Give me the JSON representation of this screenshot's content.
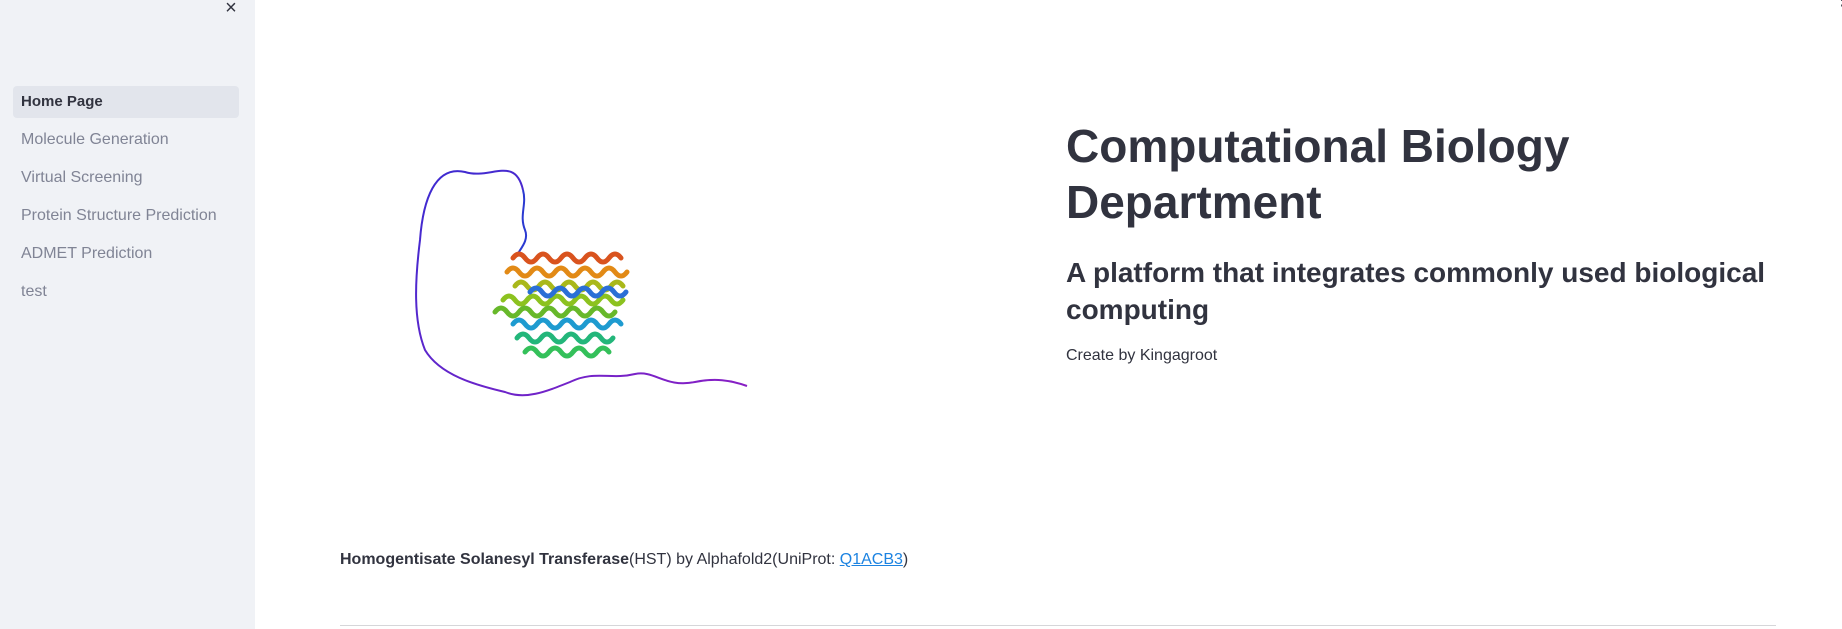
{
  "sidebar": {
    "close_icon": "×",
    "items": [
      {
        "label": "Home Page",
        "active": true
      },
      {
        "label": "Molecule Generation"
      },
      {
        "label": "Virtual Screening"
      },
      {
        "label": "Protein Structure Prediction"
      },
      {
        "label": "ADMET Prediction"
      },
      {
        "label": "test"
      }
    ]
  },
  "header": {
    "menu_icon": "⋮"
  },
  "main": {
    "title": "Computational Biology Department",
    "subtitle": "A platform that integrates commonly used biological computing",
    "creator": "Create by Kingagroot",
    "image": {
      "icon": "protein-structure-image"
    },
    "caption": {
      "bold": "Homogentisate Solanesyl Transferase",
      "rest": "(HST) by Alphafold2(UniProt: ",
      "link": "Q1ACB3",
      "end": ")"
    }
  },
  "colors": {
    "sidebar_bg": "#f0f2f6",
    "active_item_bg": "#e2e5ec",
    "text": "#31333f",
    "muted_text": "#808495",
    "link": "#1c83e1"
  }
}
